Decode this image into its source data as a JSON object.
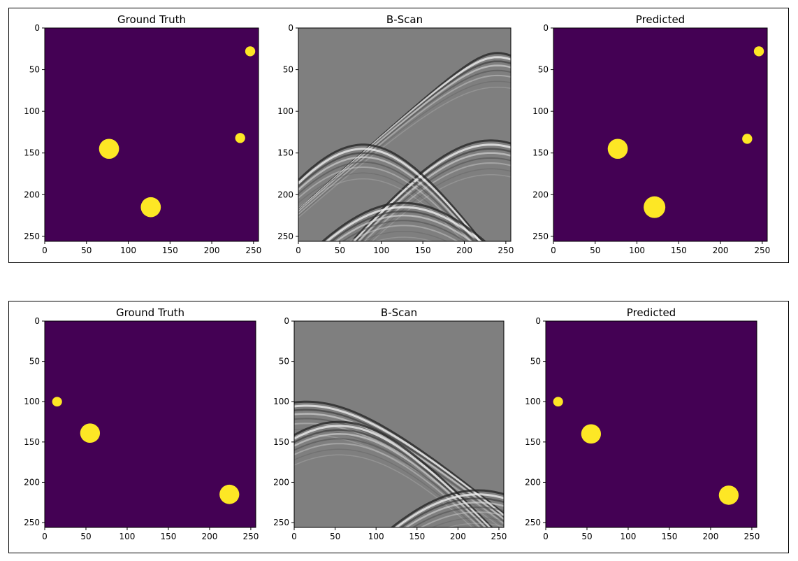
{
  "colors": {
    "background_purple": "#440154",
    "object_yellow": "#fde725",
    "bscan_gray": "#7f7f7f"
  },
  "chart_data": [
    {
      "type": "heatmap",
      "title": "Ground Truth",
      "xlim": [
        0,
        256
      ],
      "ylim": [
        256,
        0
      ],
      "xticks": [
        0,
        50,
        100,
        150,
        200,
        250
      ],
      "yticks": [
        0,
        50,
        100,
        150,
        200,
        250
      ],
      "objects": [
        {
          "x": 246,
          "y": 28,
          "r": 6
        },
        {
          "x": 234,
          "y": 132,
          "r": 6
        },
        {
          "x": 77,
          "y": 145,
          "r": 12
        },
        {
          "x": 127,
          "y": 215,
          "r": 12
        }
      ]
    },
    {
      "type": "heatmap",
      "title": "B-Scan",
      "xlim": [
        0,
        256
      ],
      "ylim": [
        256,
        0
      ],
      "xticks": [
        0,
        50,
        100,
        150,
        200,
        250
      ],
      "yticks": [
        0,
        50,
        100,
        150,
        200,
        250
      ],
      "hyperbolas": [
        {
          "apex_x": 240,
          "apex_y": 30,
          "k": 0.9
        },
        {
          "apex_x": 232,
          "apex_y": 135,
          "k": 1.3
        },
        {
          "apex_x": 78,
          "apex_y": 140,
          "k": 1.5
        },
        {
          "apex_x": 127,
          "apex_y": 210,
          "k": 1.5
        }
      ]
    },
    {
      "type": "heatmap",
      "title": "Predicted",
      "xlim": [
        0,
        256
      ],
      "ylim": [
        256,
        0
      ],
      "xticks": [
        0,
        50,
        100,
        150,
        200,
        250
      ],
      "yticks": [
        0,
        50,
        100,
        150,
        200,
        250
      ],
      "objects": [
        {
          "x": 246,
          "y": 28,
          "r": 6
        },
        {
          "x": 232,
          "y": 133,
          "r": 6
        },
        {
          "x": 77,
          "y": 145,
          "r": 12
        },
        {
          "x": 121,
          "y": 215,
          "r": 13
        }
      ]
    },
    {
      "type": "heatmap",
      "title": "Ground Truth",
      "xlim": [
        0,
        256
      ],
      "ylim": [
        256,
        0
      ],
      "xticks": [
        0,
        50,
        100,
        150,
        200,
        250
      ],
      "yticks": [
        0,
        50,
        100,
        150,
        200,
        250
      ],
      "objects": [
        {
          "x": 15,
          "y": 100,
          "r": 6
        },
        {
          "x": 55,
          "y": 139,
          "r": 12
        },
        {
          "x": 224,
          "y": 215,
          "r": 12
        }
      ]
    },
    {
      "type": "heatmap",
      "title": "B-Scan",
      "xlim": [
        0,
        256
      ],
      "ylim": [
        256,
        0
      ],
      "xticks": [
        0,
        50,
        100,
        150,
        200,
        250
      ],
      "yticks": [
        0,
        50,
        100,
        150,
        200,
        250
      ],
      "hyperbolas": [
        {
          "apex_x": 15,
          "apex_y": 100,
          "k": 0.9
        },
        {
          "apex_x": 55,
          "apex_y": 125,
          "k": 1.2
        },
        {
          "apex_x": 224,
          "apex_y": 210,
          "k": 1.4
        }
      ]
    },
    {
      "type": "heatmap",
      "title": "Predicted",
      "xlim": [
        0,
        256
      ],
      "ylim": [
        256,
        0
      ],
      "xticks": [
        0,
        50,
        100,
        150,
        200,
        250
      ],
      "yticks": [
        0,
        50,
        100,
        150,
        200,
        250
      ],
      "objects": [
        {
          "x": 15,
          "y": 100,
          "r": 6
        },
        {
          "x": 55,
          "y": 140,
          "r": 12
        },
        {
          "x": 222,
          "y": 216,
          "r": 12
        }
      ]
    }
  ]
}
